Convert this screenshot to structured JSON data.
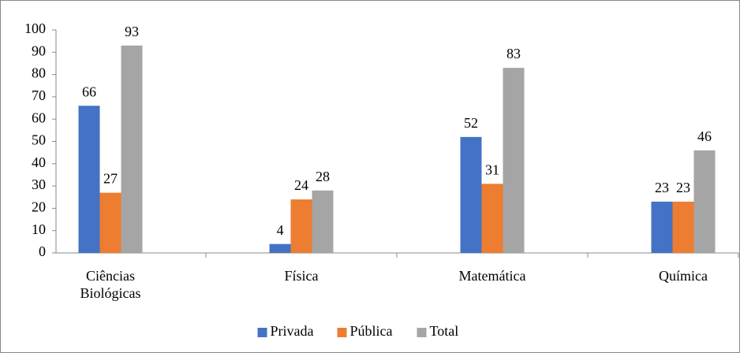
{
  "chart_data": {
    "type": "bar",
    "categories": [
      "Ciências Biológicas",
      "Física",
      "Matemática",
      "Química"
    ],
    "series": [
      {
        "name": "Privada",
        "color": "#4472c4",
        "values": [
          66,
          4,
          52,
          23
        ]
      },
      {
        "name": "Pública",
        "color": "#ed7d31",
        "values": [
          27,
          24,
          31,
          23
        ]
      },
      {
        "name": "Total",
        "color": "#a5a5a5",
        "values": [
          93,
          28,
          83,
          46
        ]
      }
    ],
    "ylim": [
      0,
      100
    ],
    "yticks": [
      0,
      10,
      20,
      30,
      40,
      50,
      60,
      70,
      80,
      90,
      100
    ],
    "grid": false,
    "legend": "bottom"
  }
}
